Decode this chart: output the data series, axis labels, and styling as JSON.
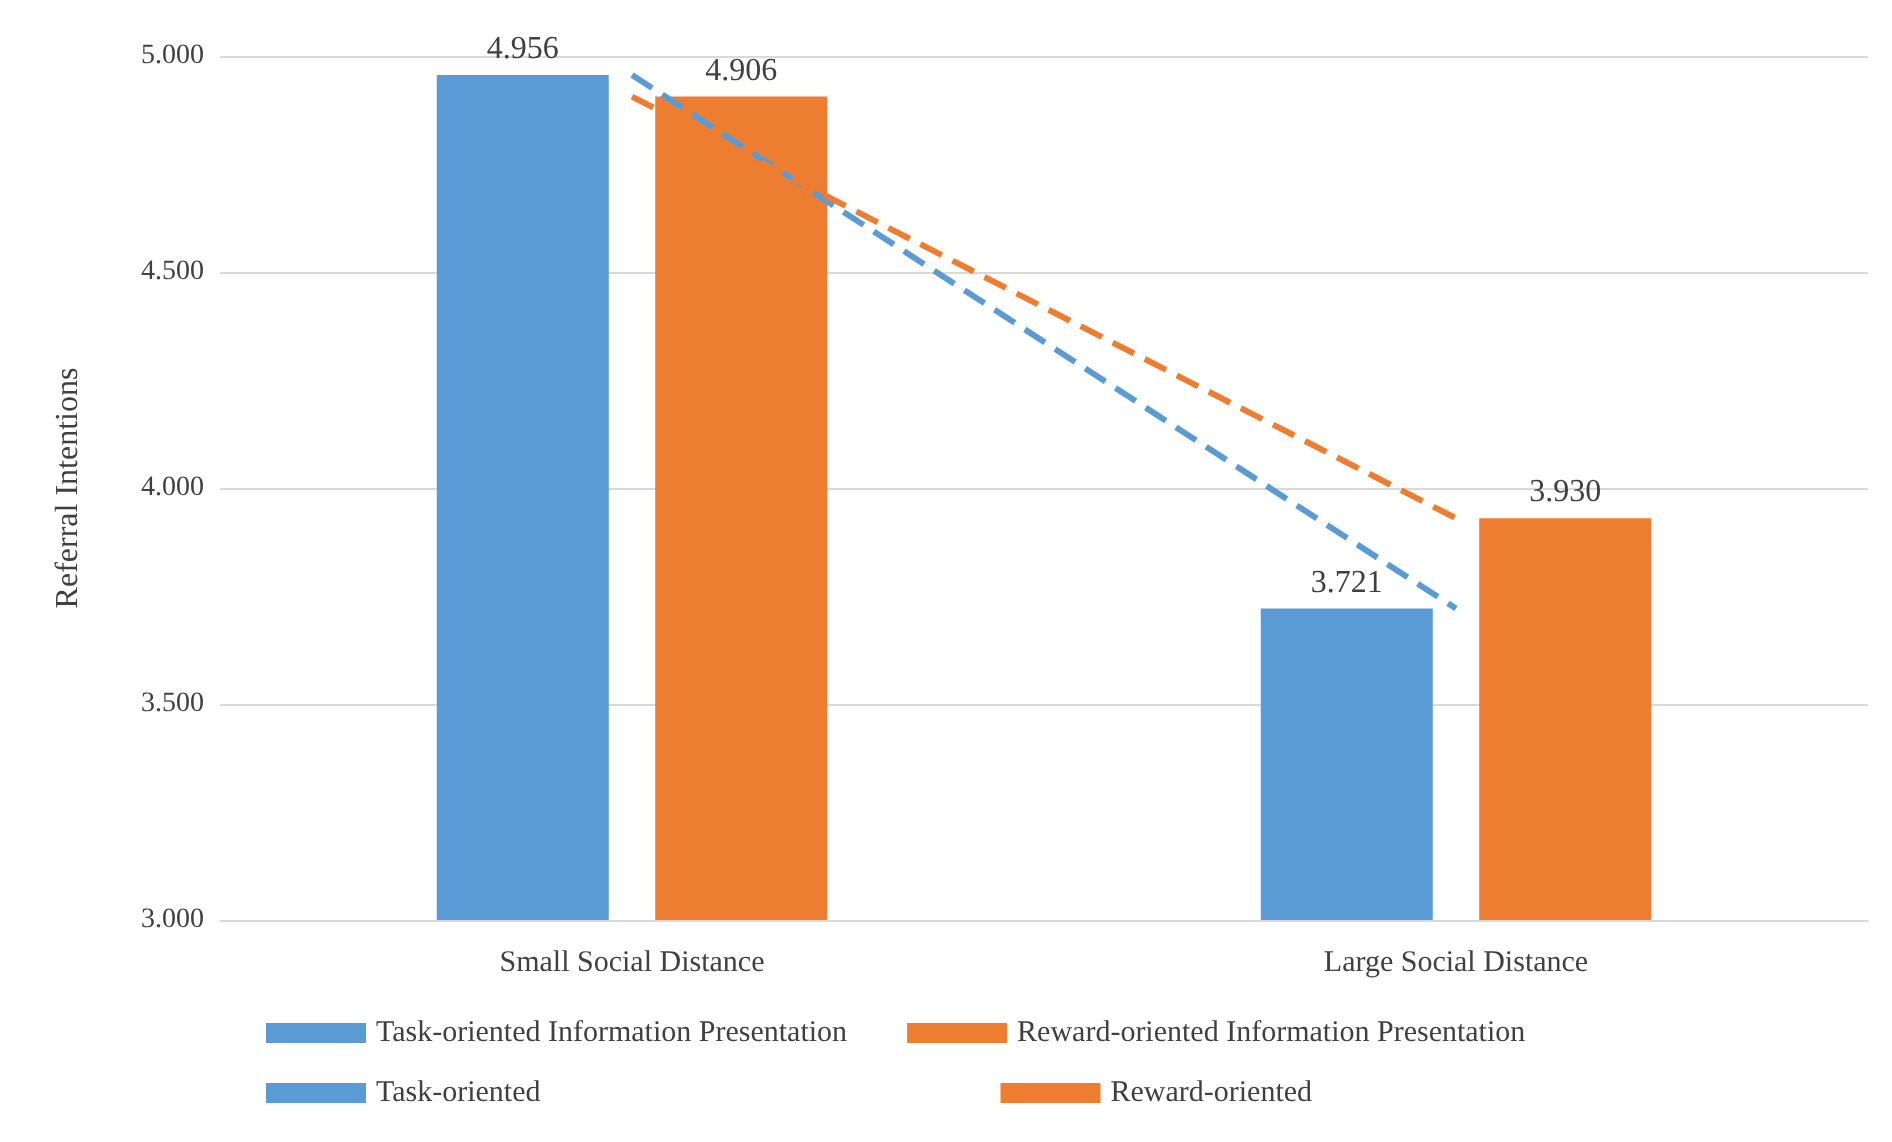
{
  "chart_data": {
    "type": "bar",
    "ylabel": "Referral Intentions",
    "categories": [
      "Small Social Distance",
      "Large Social Distance"
    ],
    "series": [
      {
        "name": "Task-oriented Information Presentation",
        "color": "#5b9bd5",
        "values": [
          4.956,
          3.721
        ],
        "value_labels": [
          "4.956",
          "3.721"
        ]
      },
      {
        "name": "Reward-oriented Information Presentation",
        "color": "#ed7d31",
        "values": [
          4.906,
          3.93
        ],
        "value_labels": [
          "4.906",
          "3.930"
        ]
      },
      {
        "name": "Task-oriented",
        "type": "line",
        "line_style": "dashed",
        "color": "#5b9bd5",
        "values": [
          4.956,
          3.721
        ]
      },
      {
        "name": "Reward-oriented",
        "type": "line",
        "line_style": "dashed",
        "color": "#ed7d31",
        "values": [
          4.906,
          3.93
        ]
      }
    ],
    "ylim": [
      3,
      5
    ],
    "yticks": [
      {
        "value": 3,
        "label": "3.000"
      },
      {
        "value": 3.5,
        "label": "3.500"
      },
      {
        "value": 4,
        "label": "4.000"
      },
      {
        "value": 4.5,
        "label": "4.500"
      },
      {
        "value": 5,
        "label": "5.000"
      }
    ],
    "grid": "y",
    "legend": "bottom",
    "marker": "none"
  }
}
